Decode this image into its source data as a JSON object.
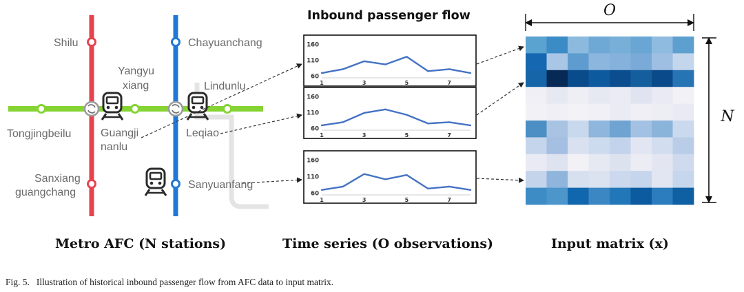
{
  "metro_map": {
    "stations": {
      "shilu": "Shilu",
      "chayuanchang": "Chayuanchang",
      "yangyu": "Yangyu",
      "xiang": "xiang",
      "lindunlu": "Lindunlu",
      "tongjingbeilu": "Tongjingbeilu",
      "guangji": "Guangji",
      "nanlu": "nanlu",
      "leqiao": "Leqiao",
      "sanxiang": "Sanxiang",
      "guangchang": "guangchang",
      "sanyuanfang": "Sanyuanfang"
    },
    "colors": {
      "red_line": "#e8424f",
      "blue_line": "#1f78d8",
      "green_line": "#86d334",
      "track_gray": "#e2e2e2"
    }
  },
  "time_series": {
    "title": "Inbound passenger flow",
    "line_color": "#4472c4",
    "charts": [
      {
        "chart_data": {
          "type": "line",
          "x": [
            1,
            2,
            3,
            4,
            5,
            6,
            7,
            8
          ],
          "values": [
            70,
            82,
            107,
            97,
            121,
            76,
            82,
            70
          ],
          "ylim": [
            55,
            165
          ],
          "yticks": [
            "160",
            "110",
            "60"
          ],
          "xticks": [
            "1",
            "3",
            "5",
            "7"
          ],
          "grid": false
        }
      },
      {
        "chart_data": {
          "type": "line",
          "x": [
            1,
            2,
            3,
            4,
            5,
            6,
            7,
            8
          ],
          "values": [
            70,
            80,
            109,
            120,
            103,
            76,
            80,
            70
          ],
          "ylim": [
            55,
            165
          ],
          "yticks": [
            "160",
            "110",
            "60"
          ],
          "xticks": [
            "1",
            "3",
            "5",
            "7"
          ],
          "grid": false
        }
      },
      {
        "chart_data": {
          "type": "line",
          "x": [
            1,
            2,
            3,
            4,
            5,
            6,
            7,
            8
          ],
          "values": [
            70,
            80,
            118,
            102,
            115,
            74,
            80,
            70
          ],
          "ylim": [
            55,
            165
          ],
          "yticks": [
            "160",
            "110",
            "60"
          ],
          "xticks": [
            "1",
            "3",
            "5",
            "7"
          ],
          "grid": false
        }
      }
    ]
  },
  "matrix": {
    "o_label": "O",
    "n_label": "N",
    "colors": [
      [
        "#5aa2d0",
        "#3b8bc6",
        "#8cbadf",
        "#6ea9d6",
        "#78afd8",
        "#6aa6d4",
        "#8fbbe0",
        "#5da0d0"
      ],
      [
        "#1467b0",
        "#aac6e6",
        "#5e9ccf",
        "#8cb6dd",
        "#85b2dc",
        "#7aabd8",
        "#9ebfe2",
        "#c3d6ec"
      ],
      [
        "#1665a8",
        "#062a55",
        "#0a4b8c",
        "#0e5a9e",
        "#0c4d90",
        "#155e9e",
        "#0b4a8a",
        "#2774b4"
      ],
      [
        "#efeff5",
        "#e7e9f2",
        "#eeeef5",
        "#e6e8f2",
        "#ebebf3",
        "#e0e3f0",
        "#e9eaf3",
        "#f1f1f6"
      ],
      [
        "#f1f1f6",
        "#efeff5",
        "#f3f3f7",
        "#f0f0f6",
        "#eaebf3",
        "#efeff5",
        "#ededf4",
        "#e9eaf3"
      ],
      [
        "#4b8fc4",
        "#a9c3e3",
        "#c8d8ed",
        "#8fb6dc",
        "#6fa3d1",
        "#a3c2e3",
        "#8ab4da",
        "#cbd9ee"
      ],
      [
        "#c5d5ec",
        "#a5bfe2",
        "#d9e1f0",
        "#cddbee",
        "#c2d3eb",
        "#e2e6f2",
        "#d2ddef",
        "#b9cde8"
      ],
      [
        "#e9eaf3",
        "#dfe3f0",
        "#f1f1f6",
        "#e6e8f2",
        "#dde2ef",
        "#ebecf4",
        "#e3e6f1",
        "#cfdaee"
      ],
      [
        "#c3d4eb",
        "#8fb5dc",
        "#d7e0ef",
        "#dbe2f0",
        "#cbd8ed",
        "#c4d5ec",
        "#e2e6f2",
        "#c6d6ec"
      ],
      [
        "#3d8cc6",
        "#4c96cc",
        "#1167ad",
        "#3a87c3",
        "#2277b8",
        "#0c5a9f",
        "#2c7dbd",
        "#0f5fa3"
      ]
    ]
  },
  "labels": {
    "metro_afc": "Metro AFC (N stations)",
    "time_series": "Time series (O observations)",
    "input_matrix": "Input matrix (x)"
  },
  "caption": {
    "fig_no": "Fig. 5.",
    "text": "Illustration of historical inbound passenger flow from AFC data to input matrix."
  }
}
